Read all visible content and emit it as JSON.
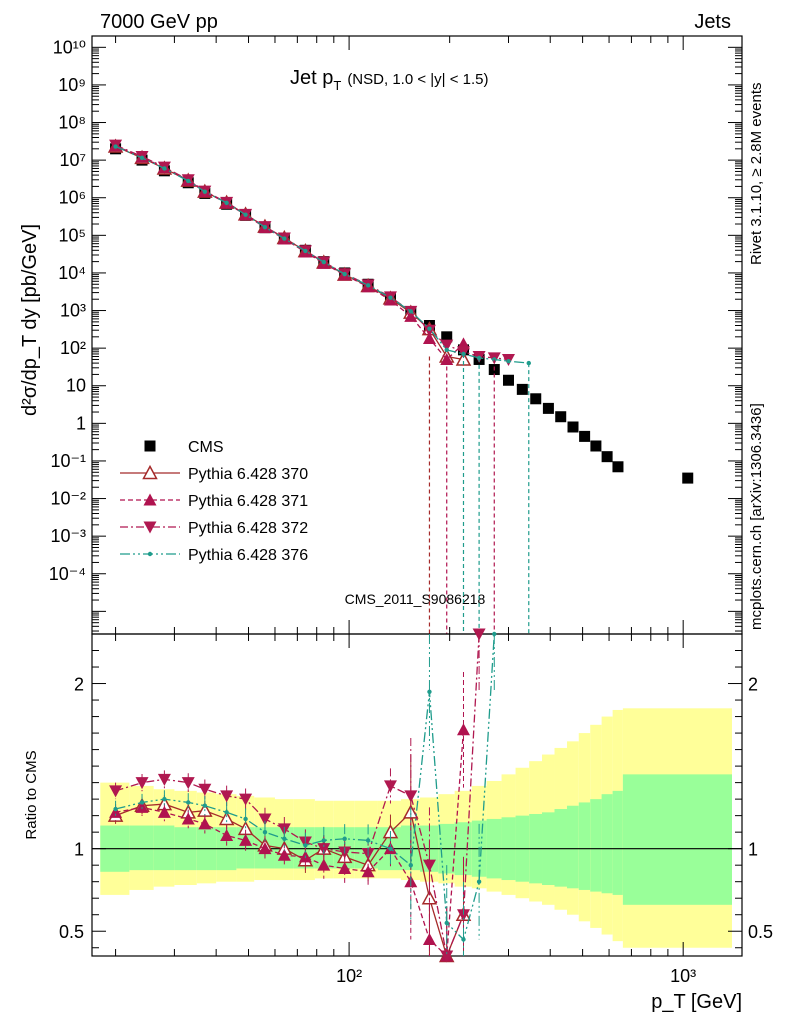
{
  "header": {
    "left": "7000 GeV pp",
    "right": "Jets"
  },
  "plot_title_main": "Jet p",
  "plot_title_sub": "T",
  "plot_title_detail": "(NSD, 1.0 < |y| < 1.5)",
  "side_labels": {
    "rivet": "Rivet 3.1.10, ≥ 2.8M events",
    "mcplots": "mcplots.cern.ch [arXiv:1306.3436]"
  },
  "watermark": "CMS_2011_S9086218",
  "colors": {
    "cms": "#000000",
    "p370": "#a52a2a",
    "p371": "#b0134f",
    "p372": "#b01850",
    "p376": "#1f9c8c",
    "band_inner": "#99ff99",
    "band_outer": "#ffff99"
  },
  "chart_data": [
    {
      "type": "scatter",
      "panel": "main",
      "ylabel": "d²σ/dp_T dy [pb/GeV]",
      "xscale": "log",
      "yscale": "log",
      "xlim": [
        17,
        1500
      ],
      "ylim": [
        2.5e-06,
        20000000000
      ],
      "xticks_major": [
        {
          "v": 100,
          "label": "10²"
        },
        {
          "v": 1000,
          "label": "10³"
        }
      ],
      "yticks_major": [
        {
          "v": 0.0001,
          "label": "10⁻⁴"
        },
        {
          "v": 0.001,
          "label": "10⁻³"
        },
        {
          "v": 0.01,
          "label": "10⁻²"
        },
        {
          "v": 0.1,
          "label": "10⁻¹"
        },
        {
          "v": 1,
          "label": "1"
        },
        {
          "v": 10,
          "label": "10"
        },
        {
          "v": 100,
          "label": "10²"
        },
        {
          "v": 1000,
          "label": "10³"
        },
        {
          "v": 10000,
          "label": "10⁴"
        },
        {
          "v": 100000,
          "label": "10⁵"
        },
        {
          "v": 1000000,
          "label": "10⁶"
        },
        {
          "v": 10000000,
          "label": "10⁷"
        },
        {
          "v": 100000000,
          "label": "10⁸"
        },
        {
          "v": 1000000000,
          "label": "10⁹"
        },
        {
          "v": 10000000000,
          "label": "10¹⁰"
        }
      ],
      "legend_position": "bottom-left",
      "series": [
        {
          "name": "CMS",
          "style": "square",
          "x": [
            20,
            24,
            28,
            33,
            37,
            43,
            49,
            56,
            64,
            74,
            84,
            97,
            114,
            133,
            153,
            174,
            196,
            220,
            245,
            272,
            300,
            330,
            362,
            395,
            430,
            468,
            507,
            548,
            592,
            638,
            1032
          ],
          "y": [
            20000000,
            10000000,
            5200000,
            2500000,
            1300000,
            670000,
            340000,
            160000,
            85000,
            40000,
            20000,
            10000,
            5000,
            2200,
            900,
            400,
            200,
            90,
            50,
            27,
            14,
            8,
            4.5,
            2.5,
            1.5,
            0.8,
            0.45,
            0.25,
            0.13,
            0.07,
            0.035
          ]
        },
        {
          "name": "Pythia 6.428 370",
          "style": "open-triangle-up",
          "x": [
            20,
            24,
            28,
            33,
            37,
            43,
            49,
            56,
            64,
            74,
            84,
            97,
            114,
            133,
            153,
            174,
            196,
            220
          ],
          "y": [
            23000000,
            11500000,
            6000000,
            2850000,
            1450000,
            740000,
            360000,
            170000,
            85000,
            38000,
            19000,
            9000,
            4500,
            2100,
            880,
            320,
            60,
            50
          ]
        },
        {
          "name": "Pythia 6.428 371",
          "style": "filled-triangle-up",
          "x": [
            20,
            24,
            28,
            33,
            37,
            43,
            49,
            56,
            64,
            74,
            84,
            97,
            114,
            133,
            153,
            174,
            196,
            220
          ],
          "y": [
            24000000,
            12000000,
            6300000,
            2900000,
            1450000,
            720000,
            350000,
            160000,
            80000,
            36000,
            18000,
            8800,
            4300,
            1900,
            700,
            180,
            50,
            130
          ]
        },
        {
          "name": "Pythia 6.428 372",
          "style": "filled-triangle-down",
          "x": [
            20,
            24,
            28,
            33,
            37,
            43,
            49,
            56,
            64,
            74,
            84,
            97,
            114,
            133,
            153,
            174,
            196,
            220,
            245,
            272,
            300
          ],
          "y": [
            25000000,
            12500000,
            6500000,
            3000000,
            1500000,
            750000,
            360000,
            170000,
            85000,
            39000,
            19500,
            9500,
            4800,
            2300,
            950,
            300,
            120,
            80,
            60,
            55,
            50
          ]
        },
        {
          "name": "Pythia 6.428 376",
          "style": "dot",
          "x": [
            20,
            24,
            28,
            33,
            37,
            43,
            49,
            56,
            64,
            74,
            84,
            97,
            114,
            133,
            153,
            174,
            196,
            220,
            245,
            272,
            300,
            345
          ],
          "y": [
            23000000,
            11500000,
            6000000,
            2800000,
            1450000,
            730000,
            355000,
            165000,
            82000,
            38500,
            19500,
            9300,
            4700,
            2200,
            950,
            330,
            90,
            70,
            55,
            50,
            45,
            40
          ]
        }
      ]
    },
    {
      "type": "line",
      "panel": "ratio",
      "ylabel": "Ratio to CMS",
      "xlabel": "p_T [GeV]",
      "xscale": "log",
      "xlim": [
        17,
        1500
      ],
      "ylim": [
        0.35,
        2.3
      ],
      "yticks_major": [
        {
          "v": 0.5,
          "label": "0.5"
        },
        {
          "v": 1,
          "label": "1"
        },
        {
          "v": 2,
          "label": "2"
        }
      ],
      "xticks_major": [
        {
          "v": 100,
          "label": "10²"
        },
        {
          "v": 1000,
          "label": "10³"
        }
      ],
      "bands": {
        "edges": [
          18,
          22,
          26,
          30,
          35,
          40,
          46,
          52,
          60,
          68,
          79,
          90,
          104,
          122,
          143,
          163,
          185,
          207,
          233,
          258,
          286,
          315,
          346,
          378,
          412,
          449,
          487,
          527,
          570,
          615,
          660,
          1400
        ],
        "inner_lo": [
          0.86,
          0.87,
          0.87,
          0.87,
          0.87,
          0.87,
          0.88,
          0.88,
          0.88,
          0.88,
          0.88,
          0.88,
          0.88,
          0.87,
          0.87,
          0.86,
          0.85,
          0.84,
          0.83,
          0.82,
          0.81,
          0.8,
          0.79,
          0.78,
          0.77,
          0.76,
          0.75,
          0.74,
          0.73,
          0.72,
          0.66
        ],
        "inner_hi": [
          1.14,
          1.14,
          1.14,
          1.13,
          1.13,
          1.13,
          1.13,
          1.13,
          1.13,
          1.13,
          1.13,
          1.13,
          1.13,
          1.13,
          1.14,
          1.14,
          1.15,
          1.16,
          1.17,
          1.18,
          1.19,
          1.2,
          1.21,
          1.22,
          1.24,
          1.26,
          1.28,
          1.3,
          1.33,
          1.35,
          1.45
        ],
        "outer_lo": [
          0.72,
          0.75,
          0.77,
          0.78,
          0.79,
          0.8,
          0.8,
          0.81,
          0.81,
          0.81,
          0.82,
          0.82,
          0.82,
          0.82,
          0.81,
          0.8,
          0.79,
          0.77,
          0.76,
          0.74,
          0.72,
          0.7,
          0.68,
          0.66,
          0.63,
          0.6,
          0.56,
          0.52,
          0.48,
          0.44,
          0.4
        ],
        "outer_hi": [
          1.4,
          1.38,
          1.36,
          1.35,
          1.34,
          1.33,
          1.32,
          1.31,
          1.3,
          1.3,
          1.29,
          1.29,
          1.29,
          1.29,
          1.3,
          1.31,
          1.33,
          1.35,
          1.38,
          1.41,
          1.45,
          1.49,
          1.53,
          1.57,
          1.61,
          1.65,
          1.7,
          1.75,
          1.8,
          1.84,
          1.85
        ]
      },
      "reference": 1,
      "series": [
        {
          "name": "Pythia 6.428 370",
          "x": [
            20,
            24,
            28,
            33,
            37,
            43,
            49,
            56,
            64,
            74,
            84,
            97,
            114,
            133,
            153,
            174,
            196,
            220
          ],
          "y": [
            1.2,
            1.26,
            1.27,
            1.22,
            1.23,
            1.18,
            1.12,
            1.02,
            1.0,
            0.93,
            1.0,
            0.95,
            0.9,
            1.1,
            1.22,
            0.7,
            0.3,
            0.6
          ]
        },
        {
          "name": "Pythia 6.428 371",
          "x": [
            20,
            24,
            28,
            33,
            37,
            43,
            49,
            56,
            64,
            74,
            84,
            97,
            114,
            133,
            153,
            174,
            196,
            220
          ],
          "y": [
            1.22,
            1.25,
            1.22,
            1.18,
            1.15,
            1.08,
            1.05,
            1.0,
            0.96,
            0.95,
            0.9,
            0.88,
            0.86,
            1.0,
            0.8,
            0.45,
            0.25,
            1.72
          ]
        },
        {
          "name": "Pythia 6.428 372",
          "x": [
            20,
            24,
            28,
            33,
            37,
            43,
            49,
            56,
            64,
            74,
            84,
            97,
            114,
            133,
            153,
            174,
            196,
            220,
            245
          ],
          "y": [
            1.35,
            1.4,
            1.42,
            1.4,
            1.36,
            1.32,
            1.3,
            1.18,
            1.12,
            1.04,
            1.0,
            0.98,
            0.97,
            1.38,
            1.32,
            0.9,
            0.3,
            0.6,
            2.3
          ]
        },
        {
          "name": "Pythia 6.428 376",
          "x": [
            20,
            24,
            28,
            33,
            37,
            43,
            49,
            56,
            64,
            74,
            84,
            97,
            114,
            133,
            153,
            174,
            196,
            220,
            245,
            272
          ],
          "y": [
            1.24,
            1.28,
            1.3,
            1.28,
            1.26,
            1.22,
            1.18,
            1.1,
            1.06,
            1.02,
            1.05,
            1.06,
            1.05,
            1.0,
            0.9,
            1.95,
            0.55,
            0.45,
            0.8,
            2.3
          ]
        }
      ]
    }
  ]
}
